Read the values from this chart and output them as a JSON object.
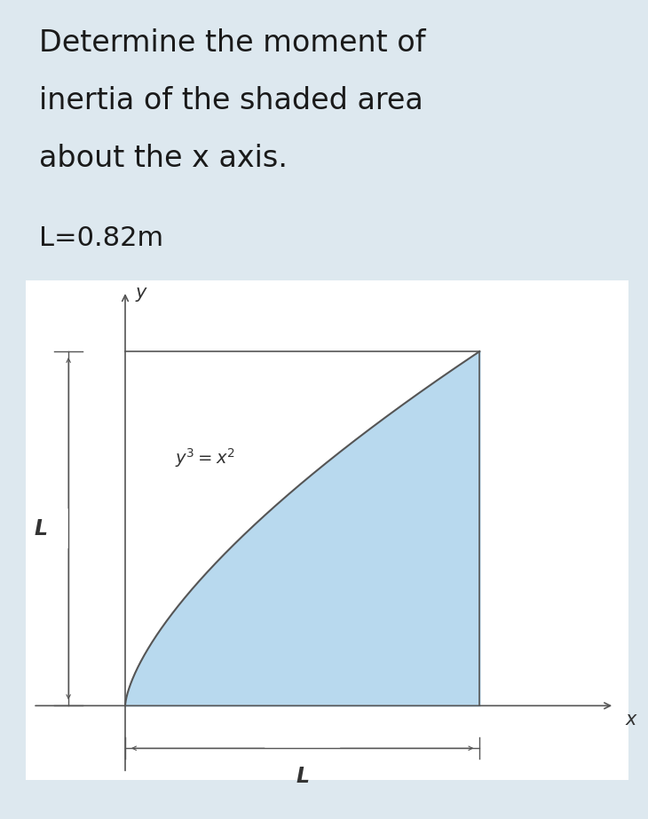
{
  "bg_color": "#dde8ef",
  "panel_bg": "#ffffff",
  "title_line1": "Determine the moment of",
  "title_line2": "inertia of the shaded area",
  "title_line3": "about the x axis.",
  "param_text": "L=0.82m",
  "equation_text": "$y^3 = x^2$",
  "L_label": "L",
  "x_label": "x",
  "y_label": "y",
  "shade_color": "#b8d9ee",
  "shade_alpha": 1.0,
  "curve_color": "#555555",
  "axis_color": "#555555",
  "dim_color": "#555555",
  "title_fontsize": 24,
  "param_fontsize": 22,
  "label_fontsize": 15,
  "eq_fontsize": 14,
  "dim_fontsize": 17
}
